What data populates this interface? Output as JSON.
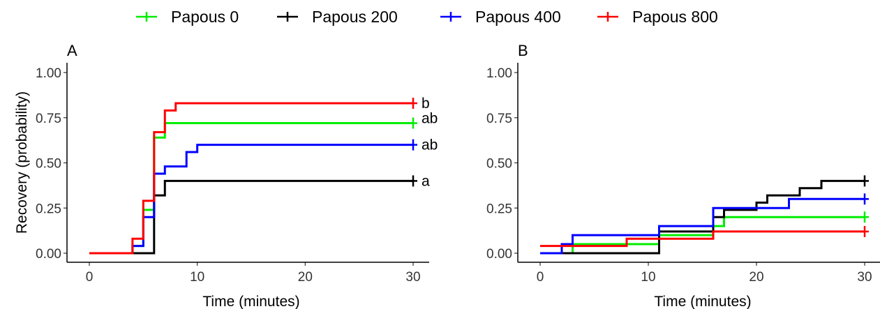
{
  "legend": {
    "items": [
      {
        "label": "Papous 0",
        "color": "#00ee00"
      },
      {
        "label": "Papous 200",
        "color": "#000000"
      },
      {
        "label": "Papous 400",
        "color": "#0000ff"
      },
      {
        "label": "Papous 800",
        "color": "#ff0000"
      }
    ],
    "position": "top"
  },
  "chart_data": [
    {
      "type": "line",
      "step": true,
      "panel": "A",
      "xlabel": "Time (minutes)",
      "ylabel": "Recovery (probability)",
      "xlim": [
        0,
        30
      ],
      "ylim": [
        0,
        1
      ],
      "x_ticks": [
        "0",
        "10",
        "20",
        "30"
      ],
      "y_ticks": [
        "0.00",
        "0.25",
        "0.50",
        "0.75",
        "1.00"
      ],
      "grid": false,
      "series": [
        {
          "name": "Papous 0",
          "color": "#00ee00",
          "x": [
            0,
            4,
            5,
            6,
            7,
            30
          ],
          "y": [
            0,
            0.04,
            0.24,
            0.64,
            0.72,
            0.72
          ],
          "censor_x": 30,
          "annotation": "ab"
        },
        {
          "name": "Papous 200",
          "color": "#000000",
          "x": [
            0,
            5,
            6,
            7,
            30
          ],
          "y": [
            0,
            0,
            0.32,
            0.4,
            0.4
          ],
          "censor_x": 30,
          "annotation": "a"
        },
        {
          "name": "Papous 400",
          "color": "#0000ff",
          "x": [
            0,
            4,
            5,
            6,
            7,
            9,
            10,
            30
          ],
          "y": [
            0,
            0.04,
            0.2,
            0.44,
            0.48,
            0.56,
            0.6,
            0.6
          ],
          "censor_x": 30,
          "annotation": "ab"
        },
        {
          "name": "Papous 800",
          "color": "#ff0000",
          "x": [
            0,
            4,
            5,
            6,
            7,
            8,
            30
          ],
          "y": [
            0,
            0.08,
            0.29,
            0.67,
            0.79,
            0.83,
            0.83
          ],
          "censor_x": 30,
          "annotation": "b"
        }
      ]
    },
    {
      "type": "line",
      "step": true,
      "panel": "B",
      "xlabel": "Time (minutes)",
      "ylabel": "",
      "xlim": [
        0,
        30
      ],
      "ylim": [
        0,
        1
      ],
      "x_ticks": [
        "0",
        "10",
        "20",
        "30"
      ],
      "y_ticks": [
        "0.00",
        "0.25",
        "0.50",
        "0.75",
        "1.00"
      ],
      "grid": false,
      "series": [
        {
          "name": "Papous 0",
          "color": "#00ee00",
          "x": [
            0,
            3,
            11,
            16,
            17,
            30
          ],
          "y": [
            0,
            0.05,
            0.1,
            0.15,
            0.2,
            0.2
          ],
          "censor_x": 30
        },
        {
          "name": "Papous 200",
          "color": "#000000",
          "x": [
            0,
            10,
            11,
            16,
            17,
            20,
            21,
            24,
            26,
            30
          ],
          "y": [
            0,
            0,
            0.12,
            0.2,
            0.24,
            0.28,
            0.32,
            0.36,
            0.4,
            0.4
          ],
          "censor_x": 30
        },
        {
          "name": "Papous 400",
          "color": "#0000ff",
          "x": [
            0,
            2,
            3,
            11,
            16,
            23,
            30
          ],
          "y": [
            0,
            0.05,
            0.1,
            0.15,
            0.25,
            0.3,
            0.3
          ],
          "censor_x": 30
        },
        {
          "name": "Papous 800",
          "color": "#ff0000",
          "x": [
            0,
            8,
            16,
            30
          ],
          "y": [
            0.04,
            0.08,
            0.12,
            0.12
          ],
          "censor_x": 30
        }
      ]
    }
  ]
}
